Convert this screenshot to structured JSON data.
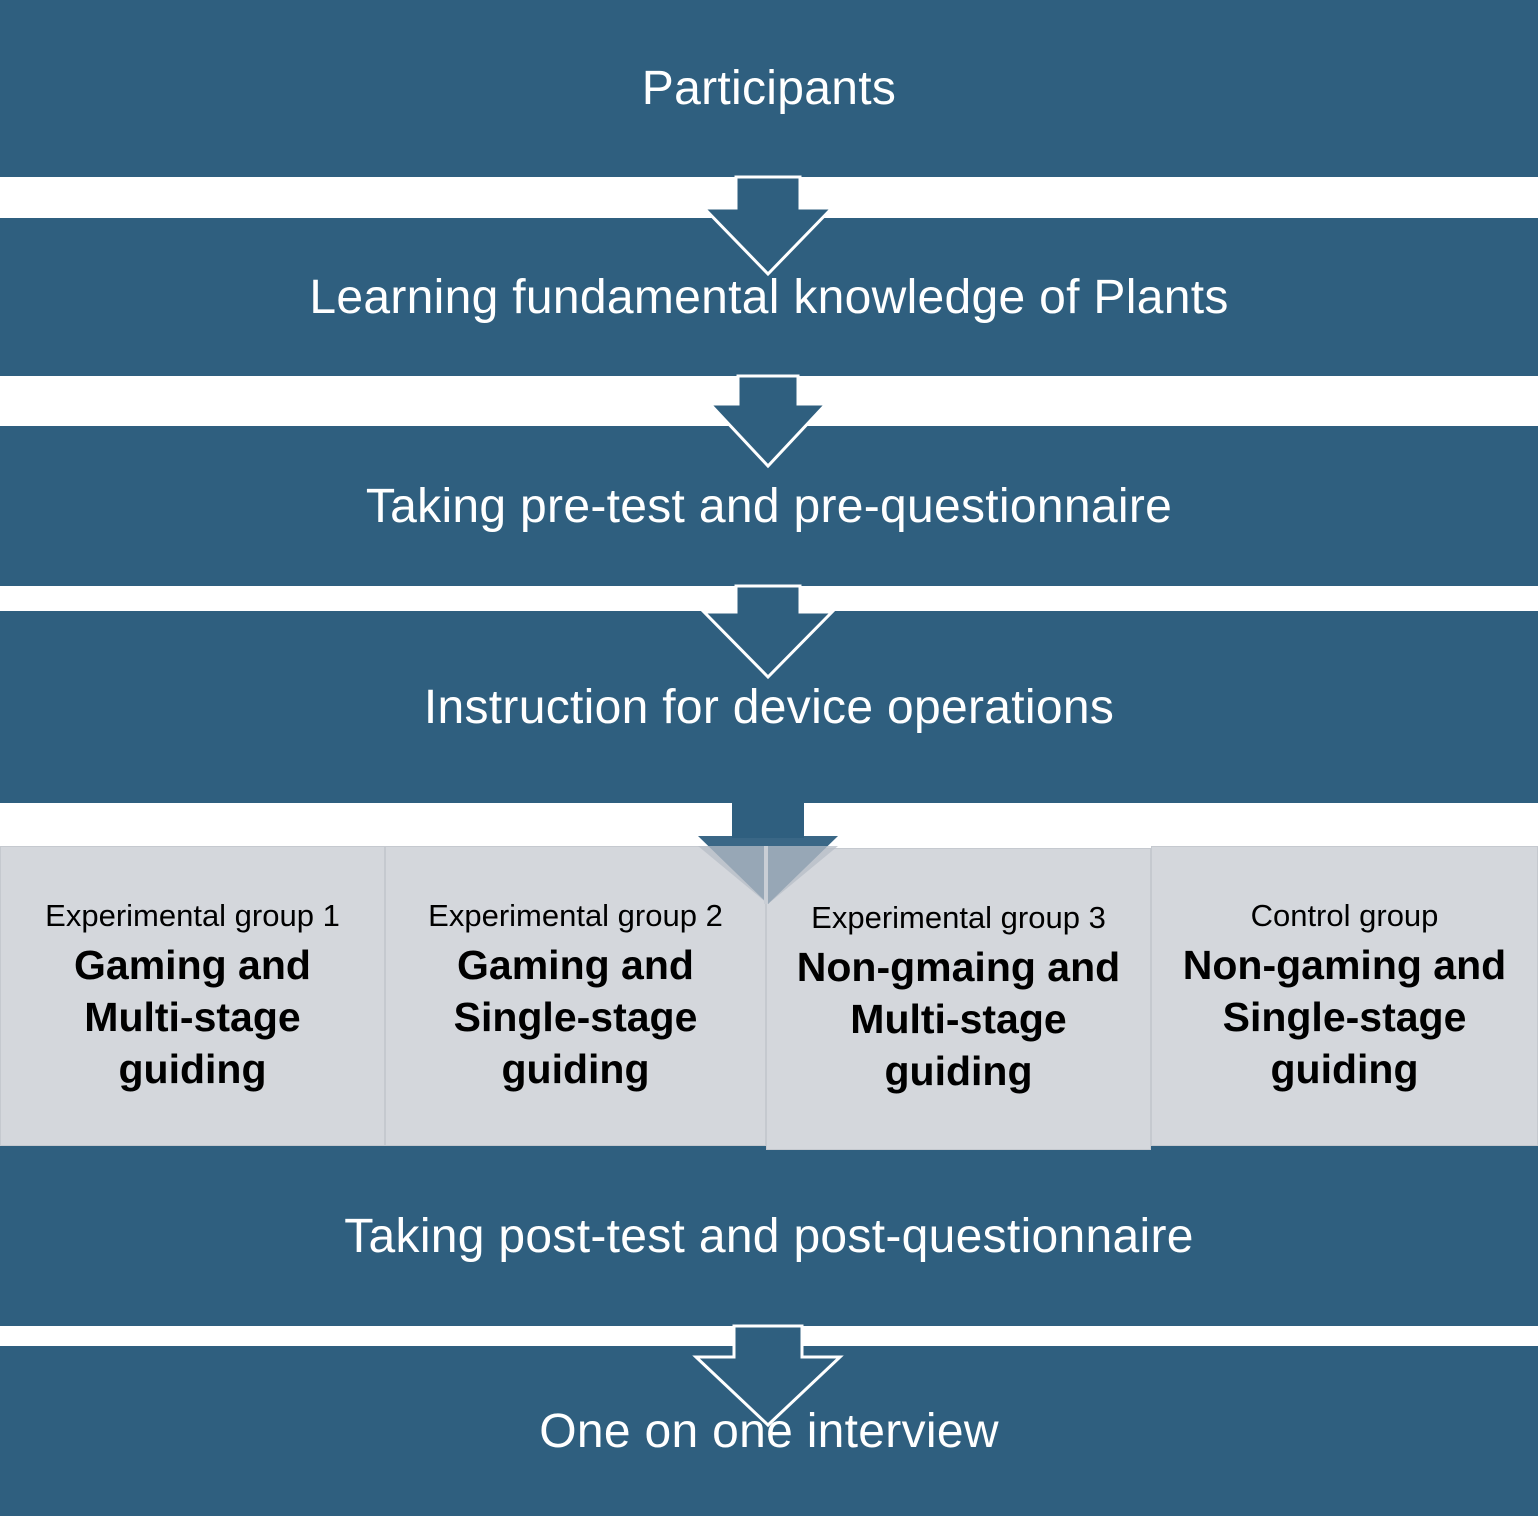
{
  "steps": {
    "participants": "Participants",
    "learning": "Learning fundamental knowledge of Plants",
    "pre_test": "Taking pre-test and pre-questionnaire",
    "instruction": "Instruction for device operations",
    "post_test": "Taking post-test and post-questionnaire",
    "interview": "One on one interview"
  },
  "groups": [
    {
      "label": "Experimental group 1",
      "title": "Gaming and Multi-stage guiding"
    },
    {
      "label": "Experimental group 2",
      "title": "Gaming and Single-stage guiding"
    },
    {
      "label": "Experimental group 3",
      "title": "Non-gmaing and Multi-stage guiding"
    },
    {
      "label": "Control group",
      "title": "Non-gaming and Single-stage guiding"
    }
  ],
  "colors": {
    "band": "#2f5f7f",
    "group_box": "#d4d7dc",
    "text_light": "#ffffff",
    "text_dark": "#000000"
  }
}
